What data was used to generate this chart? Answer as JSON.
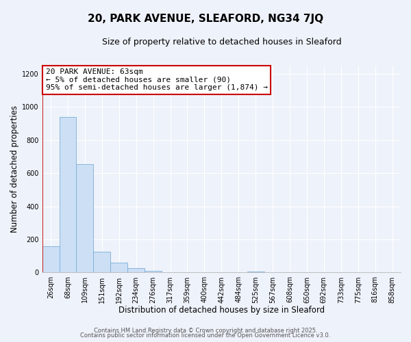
{
  "title": "20, PARK AVENUE, SLEAFORD, NG34 7JQ",
  "subtitle": "Size of property relative to detached houses in Sleaford",
  "xlabel": "Distribution of detached houses by size in Sleaford",
  "ylabel": "Number of detached properties",
  "bar_labels": [
    "26sqm",
    "68sqm",
    "109sqm",
    "151sqm",
    "192sqm",
    "234sqm",
    "276sqm",
    "317sqm",
    "359sqm",
    "400sqm",
    "442sqm",
    "484sqm",
    "525sqm",
    "567sqm",
    "608sqm",
    "650sqm",
    "692sqm",
    "733sqm",
    "775sqm",
    "816sqm",
    "858sqm"
  ],
  "bar_values": [
    160,
    940,
    655,
    125,
    58,
    27,
    10,
    0,
    0,
    0,
    0,
    0,
    8,
    0,
    0,
    0,
    0,
    0,
    0,
    0,
    0
  ],
  "bar_color": "#ccdff5",
  "bar_edgecolor": "#7aaed6",
  "annotation_line1": "20 PARK AVENUE: 63sqm",
  "annotation_line2": "← 5% of detached houses are smaller (90)",
  "annotation_line3": "95% of semi-detached houses are larger (1,874) →",
  "annotation_box_facecolor": "white",
  "annotation_box_edgecolor": "#cc0000",
  "ylim": [
    0,
    1250
  ],
  "yticks": [
    0,
    200,
    400,
    600,
    800,
    1000,
    1200
  ],
  "background_color": "#eef2fa",
  "grid_color": "white",
  "footer_line1": "Contains HM Land Registry data © Crown copyright and database right 2025.",
  "footer_line2": "Contains public sector information licensed under the Open Government Licence v3.0.",
  "title_fontsize": 11,
  "subtitle_fontsize": 9,
  "axis_label_fontsize": 8.5,
  "tick_fontsize": 7,
  "annotation_fontsize": 8,
  "footer_fontsize": 6
}
